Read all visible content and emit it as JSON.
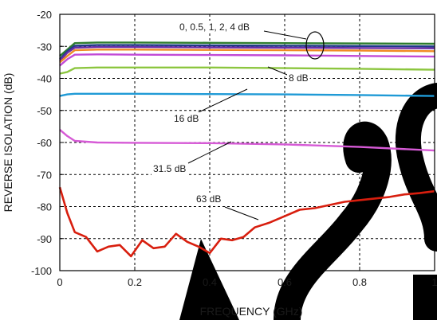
{
  "chart_data": {
    "type": "line",
    "title": "",
    "xlabel": "FREQUENCY (GHz)",
    "ylabel": "REVERSE ISOLATION (dB)",
    "xlim": [
      0,
      1
    ],
    "ylim": [
      -100,
      -20
    ],
    "xticks": [
      0,
      0.2,
      0.4,
      0.6,
      0.8,
      1
    ],
    "xtick_labels": [
      "0",
      "0.2",
      "0.4",
      "0.6",
      "0.8",
      "1"
    ],
    "yticks": [
      -100,
      -90,
      -80,
      -70,
      -60,
      -50,
      -40,
      -30,
      -20
    ],
    "ytick_labels": [
      "-100",
      "-90",
      "-80",
      "-70",
      "-60",
      "-50",
      "-40",
      "-30",
      "-20"
    ],
    "grid": true,
    "watermark": "BSC",
    "annotations": [
      "0, 0.5, 1, 2, 4 dB",
      "8 dB",
      "16 dB",
      "31.5 dB",
      "63 dB"
    ],
    "series": [
      {
        "color": "#2e7d2e",
        "x": [
          0,
          0.02,
          0.04,
          0.1,
          0.2,
          0.4,
          0.6,
          0.8,
          1.0
        ],
        "y": [
          -33,
          -31,
          -29,
          -28.8,
          -28.8,
          -28.9,
          -29,
          -29.1,
          -29.2
        ]
      },
      {
        "color": "#1f3c88",
        "x": [
          0,
          0.02,
          0.04,
          0.1,
          0.2,
          0.4,
          0.6,
          0.8,
          1.0
        ],
        "y": [
          -34,
          -31.5,
          -29.8,
          -29.6,
          -29.6,
          -29.7,
          -29.8,
          -29.9,
          -30
        ]
      },
      {
        "color": "#6a2da8",
        "x": [
          0,
          0.02,
          0.04,
          0.1,
          0.2,
          0.4,
          0.6,
          0.8,
          1.0
        ],
        "y": [
          -34.5,
          -32,
          -30.4,
          -30.2,
          -30.2,
          -30.3,
          -30.4,
          -30.5,
          -30.6
        ]
      },
      {
        "color": "#f08a24",
        "x": [
          0,
          0.02,
          0.04,
          0.1,
          0.2,
          0.4,
          0.6,
          0.8,
          1.0
        ],
        "y": [
          -35,
          -33,
          -31.2,
          -31,
          -31,
          -31.1,
          -31.2,
          -31.3,
          -31.5
        ]
      },
      {
        "color": "#c24ad6",
        "x": [
          0,
          0.02,
          0.04,
          0.1,
          0.2,
          0.4,
          0.6,
          0.8,
          1.0
        ],
        "y": [
          -36,
          -34,
          -32.6,
          -32.5,
          -32.6,
          -32.7,
          -32.8,
          -33,
          -33.2
        ]
      },
      {
        "color": "#8cc63f",
        "x": [
          0,
          0.02,
          0.04,
          0.1,
          0.2,
          0.4,
          0.6,
          0.8,
          1.0
        ],
        "y": [
          -38.5,
          -38,
          -36.8,
          -36.6,
          -36.6,
          -36.6,
          -36.8,
          -37,
          -37.3
        ]
      },
      {
        "color": "#1f9ad6",
        "x": [
          0,
          0.02,
          0.04,
          0.1,
          0.2,
          0.4,
          0.6,
          0.8,
          1.0
        ],
        "y": [
          -45.5,
          -45,
          -44.8,
          -44.8,
          -44.8,
          -44.9,
          -45,
          -45.2,
          -45.5
        ]
      },
      {
        "color": "#d65ad6",
        "x": [
          0,
          0.02,
          0.04,
          0.1,
          0.2,
          0.4,
          0.6,
          0.8,
          1.0
        ],
        "y": [
          -56,
          -58,
          -59.5,
          -60,
          -60.1,
          -60.2,
          -60.6,
          -61.4,
          -62.5
        ]
      },
      {
        "color": "#d81e0e",
        "x": [
          0,
          0.02,
          0.04,
          0.07,
          0.1,
          0.13,
          0.16,
          0.19,
          0.22,
          0.25,
          0.28,
          0.31,
          0.34,
          0.37,
          0.4,
          0.43,
          0.46,
          0.49,
          0.52,
          0.56,
          0.6,
          0.64,
          0.68,
          0.72,
          0.76,
          0.8,
          0.84,
          0.88,
          0.92,
          0.96,
          1.0
        ],
        "y": [
          -74,
          -82,
          -88,
          -89.5,
          -94,
          -92.5,
          -92,
          -95.5,
          -90.5,
          -93,
          -92.5,
          -88.5,
          -91,
          -92.5,
          -94.5,
          -90,
          -90.5,
          -89.5,
          -86.5,
          -85,
          -83,
          -81,
          -80.5,
          -79.5,
          -78.5,
          -78,
          -77.5,
          -77,
          -76.2,
          -75.8,
          -75.2
        ]
      }
    ]
  }
}
